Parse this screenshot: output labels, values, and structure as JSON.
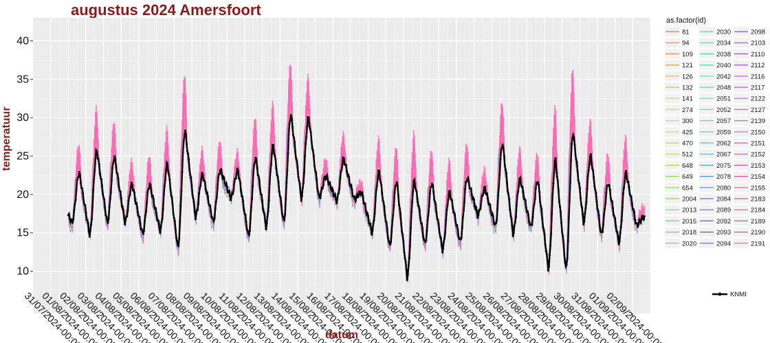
{
  "chart_data": {
    "type": "line",
    "title": "augustus 2024 Amersfoort",
    "xlabel": "datum",
    "ylabel": "temperatuur",
    "ylim": [
      4.5,
      43
    ],
    "xlim": [
      "2024-07-30",
      "2024-09-03"
    ],
    "yticks": [
      10,
      15,
      20,
      25,
      30,
      35,
      40
    ],
    "xticks": [
      "31/07/2024-00:00",
      "01/08/2024-00:00",
      "02/08/2024-00:00",
      "03/08/2024-00:00",
      "04/08/2024-00:00",
      "05/08/2024-00:00",
      "06/08/2024-00:00",
      "07/08/2024-00:00",
      "08/08/2024-00:00",
      "09/08/2024-00:00",
      "10/08/2024-00:00",
      "11/08/2024-00:00",
      "12/08/2024-00:00",
      "13/08/2024-00:00",
      "14/08/2024-00:00",
      "15/08/2024-00:00",
      "16/08/2024-00:00",
      "17/08/2024-00:00",
      "18/08/2024-00:00",
      "19/08/2024-00:00",
      "20/08/2024-00:00",
      "21/08/2024-00:00",
      "22/08/2024-00:00",
      "23/08/2024-00:00",
      "24/08/2024-00:00",
      "25/08/2024-00:00",
      "26/08/2024-00:00",
      "27/08/2024-00:00",
      "28/08/2024-00:00",
      "29/08/2024-00:00",
      "30/08/2024-00:00",
      "31/08/2024-00:00",
      "01/09/2024-00:00",
      "02/09/2024-00:00"
    ],
    "grid": true,
    "legend_placement": "right",
    "legend_title": "as.factor(id)",
    "legend_ids": [
      "81",
      "94",
      "109",
      "121",
      "126",
      "132",
      "141",
      "274",
      "300",
      "425",
      "470",
      "512",
      "648",
      "649",
      "654",
      "2004",
      "2013",
      "2015",
      "2018",
      "2020",
      "2030",
      "2034",
      "2038",
      "2040",
      "2042",
      "2048",
      "2051",
      "2052",
      "2057",
      "2059",
      "2062",
      "2067",
      "2075",
      "2078",
      "2080",
      "2084",
      "2089",
      "2092",
      "2093",
      "2094",
      "2098",
      "2103",
      "2110",
      "2112",
      "2116",
      "2117",
      "2122",
      "2127",
      "2139",
      "2150",
      "2151",
      "2152",
      "2153",
      "2154",
      "2155",
      "2183",
      "2184",
      "2189",
      "2190",
      "2191"
    ],
    "knmi_label": "KNMI",
    "daily_min": [
      16.4,
      14.8,
      16.3,
      16.4,
      14.9,
      15.3,
      13.1,
      17.1,
      16.5,
      19.6,
      14.6,
      15.8,
      16.4,
      19.5,
      19.6,
      19.2,
      19.4,
      15.1,
      13.3,
      9.2,
      13.6,
      12.8,
      13.9,
      17.3,
      15.9,
      14.9,
      15.8,
      10.4,
      10.3,
      16.4,
      14.8,
      13.8,
      16.0
    ],
    "daily_max": [
      22.8,
      25.7,
      24.9,
      21.3,
      21.3,
      24.0,
      28.3,
      22.6,
      23.2,
      23.1,
      24.8,
      26.4,
      30.4,
      30.0,
      22.4,
      24.6,
      20.3,
      23.0,
      21.7,
      21.8,
      21.5,
      20.3,
      22.2,
      20.8,
      26.6,
      22.0,
      21.8,
      24.5,
      28.0,
      25.0,
      21.5,
      22.8,
      17.0
    ],
    "colors": {
      "knmi": "#000000",
      "panel": "#ebebeb",
      "grid": "#ffffff",
      "title": "#8b1a1a",
      "stations_dominant": "#ff69b4"
    }
  }
}
